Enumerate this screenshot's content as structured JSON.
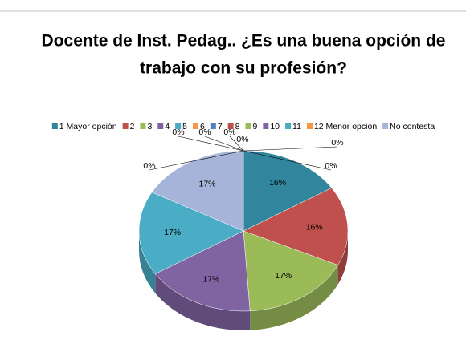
{
  "chart_data": {
    "type": "pie3d",
    "title": [
      "Docente de Inst. Pedag.. ¿Es una buena opción de",
      "trabajo con su profesión?"
    ],
    "categories": [
      "1 Mayor opción",
      "2",
      "3",
      "4",
      "5",
      "6",
      "7",
      "8",
      "9",
      "10",
      "11",
      "12 Menor opción",
      "No contesta"
    ],
    "values": [
      16,
      16,
      17,
      17,
      17,
      0,
      0,
      0,
      0,
      0,
      0,
      0,
      17
    ],
    "value_labels": [
      "16%",
      "16%",
      "17%",
      "17%",
      "17%",
      "0%",
      "0%",
      "0%",
      "0%",
      "0%",
      "0%",
      "0%",
      "17%"
    ],
    "colors": [
      "#31859c",
      "#c0504d",
      "#9bbb59",
      "#8064a2",
      "#4bacc6",
      "#f79646",
      "#4f81bd",
      "#c0504d",
      "#9bbb59",
      "#8064a2",
      "#4bacc6",
      "#f79646",
      "#a5b4d8"
    ],
    "legend": "top"
  }
}
